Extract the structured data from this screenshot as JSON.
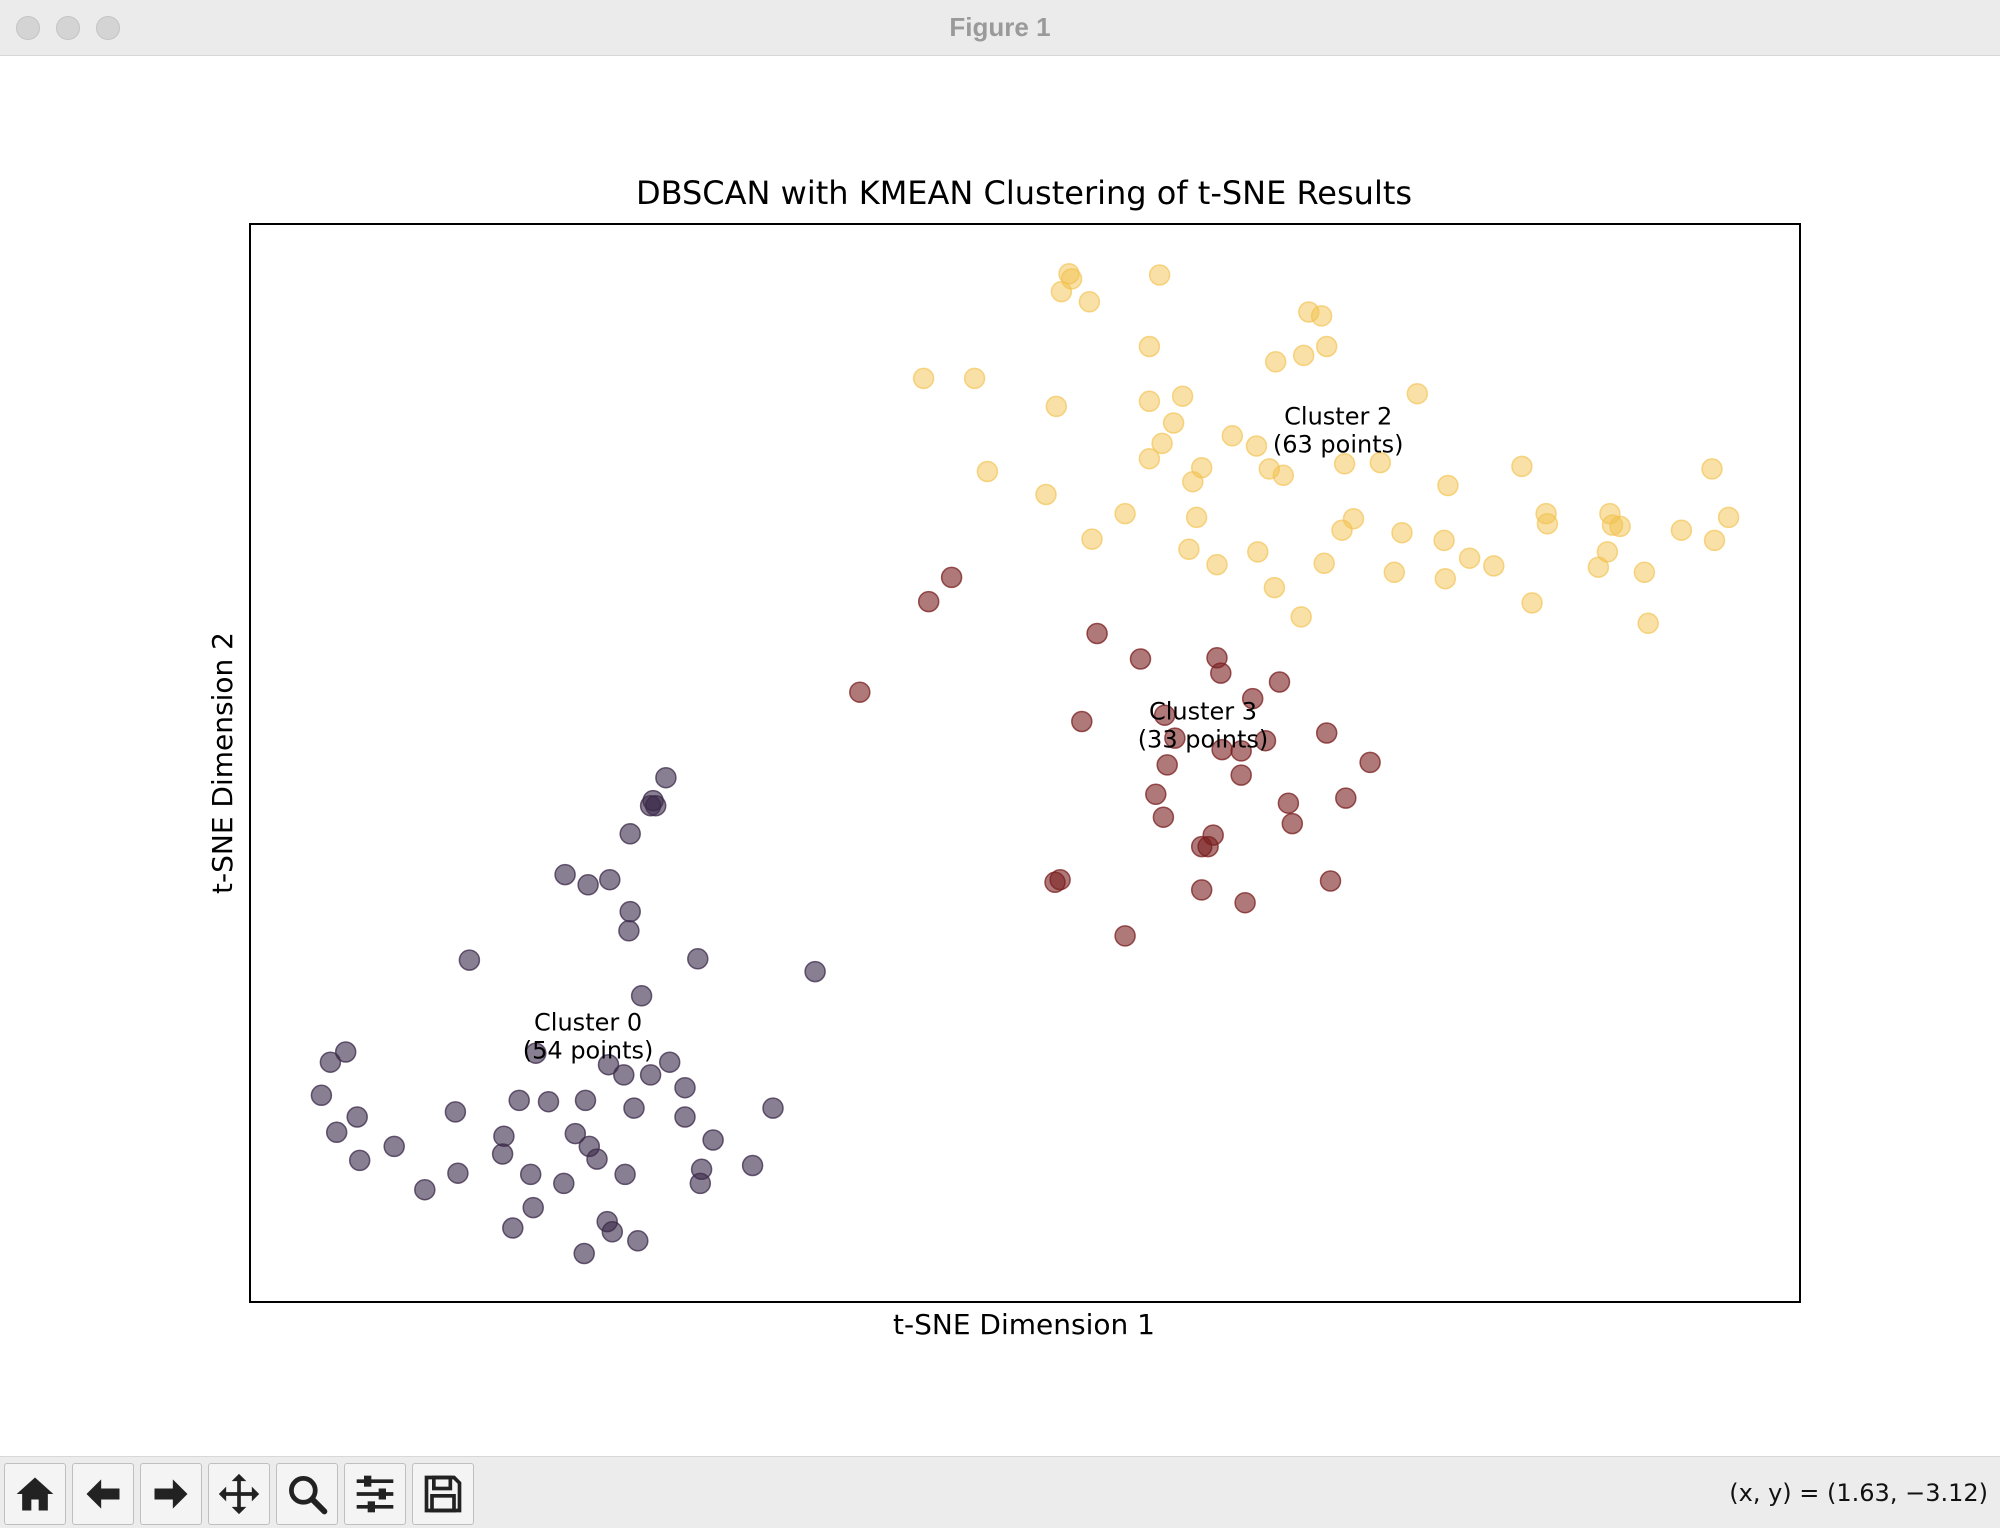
{
  "window": {
    "title": "Figure 1"
  },
  "toolbar": {
    "buttons": [
      {
        "name": "home-button",
        "icon": "home-icon"
      },
      {
        "name": "back-button",
        "icon": "arrow-left-icon"
      },
      {
        "name": "forward-button",
        "icon": "arrow-right-icon"
      },
      {
        "name": "pan-button",
        "icon": "move-icon"
      },
      {
        "name": "zoom-button",
        "icon": "search-icon"
      },
      {
        "name": "configure-subplots-button",
        "icon": "sliders-icon"
      },
      {
        "name": "save-button",
        "icon": "save-icon"
      }
    ],
    "coords": "(x, y) = (1.63, −3.12)"
  },
  "chart_data": {
    "type": "scatter",
    "title": "DBSCAN with KMEAN Clustering of t-SNE Results",
    "xlabel": "t-SNE Dimension 1",
    "ylabel": "t-SNE Dimension 2",
    "xlim": [
      0,
      1215
    ],
    "ylim": [
      0,
      845
    ],
    "ticks": "none",
    "grid": false,
    "series": [
      {
        "color": "#3b2a4a",
        "alpha": 0.6,
        "annotation": [
          "Cluster 0",
          "(54 points)"
        ],
        "annotation_at": [
          265,
          208
        ],
        "points": [
          [
            326,
            411
          ],
          [
            316,
            393
          ],
          [
            318,
            389
          ],
          [
            314,
            389
          ],
          [
            298,
            367
          ],
          [
            247,
            335
          ],
          [
            265,
            327
          ],
          [
            282,
            331
          ],
          [
            298,
            306
          ],
          [
            297,
            291
          ],
          [
            443,
            259
          ],
          [
            351,
            269
          ],
          [
            172,
            268
          ],
          [
            307,
            240
          ],
          [
            75,
            196
          ],
          [
            63,
            188
          ],
          [
            56,
            162
          ],
          [
            84,
            145
          ],
          [
            68,
            133
          ],
          [
            86,
            111
          ],
          [
            113,
            122
          ],
          [
            161,
            149
          ],
          [
            211,
            158
          ],
          [
            234,
            157
          ],
          [
            263,
            158
          ],
          [
            293,
            178
          ],
          [
            281,
            186
          ],
          [
            314,
            178
          ],
          [
            329,
            188
          ],
          [
            341,
            168
          ],
          [
            301,
            152
          ],
          [
            341,
            145
          ],
          [
            363,
            127
          ],
          [
            199,
            130
          ],
          [
            198,
            116
          ],
          [
            255,
            132
          ],
          [
            266,
            122
          ],
          [
            272,
            112
          ],
          [
            220,
            100
          ],
          [
            246,
            93
          ],
          [
            294,
            100
          ],
          [
            163,
            101
          ],
          [
            137,
            88
          ],
          [
            354,
            104
          ],
          [
            353,
            93
          ],
          [
            394,
            107
          ],
          [
            410,
            152
          ],
          [
            222,
            74
          ],
          [
            206,
            58
          ],
          [
            280,
            63
          ],
          [
            284,
            55
          ],
          [
            304,
            48
          ],
          [
            262,
            38
          ],
          [
            224,
            195
          ]
        ]
      },
      {
        "color": "#7a1f1f",
        "alpha": 0.6,
        "annotation": [
          "Cluster 3",
          "(33 points)"
        ],
        "annotation_at": [
          747,
          452
        ],
        "points": [
          [
            550,
            568
          ],
          [
            532,
            549
          ],
          [
            478,
            478
          ],
          [
            664,
            524
          ],
          [
            698,
            504
          ],
          [
            758,
            505
          ],
          [
            761,
            493
          ],
          [
            807,
            486
          ],
          [
            786,
            473
          ],
          [
            652,
            455
          ],
          [
            717,
            460
          ],
          [
            796,
            440
          ],
          [
            844,
            446
          ],
          [
            725,
            442
          ],
          [
            762,
            433
          ],
          [
            777,
            432
          ],
          [
            719,
            421
          ],
          [
            777,
            413
          ],
          [
            878,
            423
          ],
          [
            710,
            398
          ],
          [
            814,
            391
          ],
          [
            859,
            395
          ],
          [
            716,
            380
          ],
          [
            817,
            375
          ],
          [
            755,
            366
          ],
          [
            746,
            357
          ],
          [
            751,
            357
          ],
          [
            635,
            331
          ],
          [
            631,
            329
          ],
          [
            746,
            323
          ],
          [
            780,
            313
          ],
          [
            847,
            330
          ],
          [
            686,
            287
          ]
        ]
      },
      {
        "color": "#f2c14e",
        "alpha": 0.5,
        "annotation": [
          "Cluster 2",
          "(63 points)"
        ],
        "annotation_at": [
          853,
          683
        ],
        "points": [
          [
            642,
            806
          ],
          [
            644,
            802
          ],
          [
            713,
            805
          ],
          [
            636,
            792
          ],
          [
            658,
            784
          ],
          [
            830,
            776
          ],
          [
            840,
            773
          ],
          [
            705,
            749
          ],
          [
            844,
            749
          ],
          [
            826,
            742
          ],
          [
            804,
            737
          ],
          [
            528,
            724
          ],
          [
            568,
            724
          ],
          [
            915,
            712
          ],
          [
            731,
            710
          ],
          [
            705,
            706
          ],
          [
            632,
            702
          ],
          [
            724,
            689
          ],
          [
            770,
            679
          ],
          [
            789,
            671
          ],
          [
            715,
            673
          ],
          [
            1146,
            653
          ],
          [
            578,
            651
          ],
          [
            705,
            661
          ],
          [
            746,
            654
          ],
          [
            799,
            653
          ],
          [
            810,
            648
          ],
          [
            858,
            657
          ],
          [
            886,
            658
          ],
          [
            997,
            655
          ],
          [
            739,
            643
          ],
          [
            624,
            633
          ],
          [
            939,
            640
          ],
          [
            1016,
            618
          ],
          [
            686,
            618
          ],
          [
            742,
            615
          ],
          [
            1159,
            615
          ],
          [
            865,
            614
          ],
          [
            1066,
            618
          ],
          [
            1068,
            609
          ],
          [
            1074,
            608
          ],
          [
            1122,
            605
          ],
          [
            1017,
            610
          ],
          [
            1148,
            597
          ],
          [
            856,
            605
          ],
          [
            903,
            603
          ],
          [
            660,
            598
          ],
          [
            936,
            597
          ],
          [
            736,
            590
          ],
          [
            790,
            588
          ],
          [
            956,
            583
          ],
          [
            1064,
            588
          ],
          [
            842,
            579
          ],
          [
            975,
            577
          ],
          [
            1057,
            576
          ],
          [
            897,
            572
          ],
          [
            1093,
            572
          ],
          [
            937,
            567
          ],
          [
            803,
            560
          ],
          [
            1005,
            548
          ],
          [
            824,
            537
          ],
          [
            1096,
            532
          ],
          [
            758,
            578
          ]
        ]
      }
    ]
  }
}
